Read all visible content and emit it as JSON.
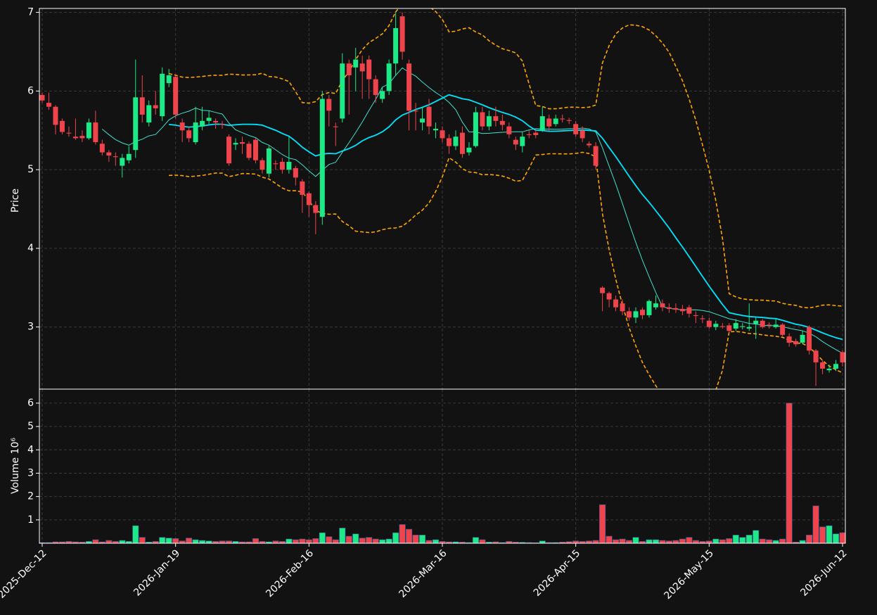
{
  "chart_data": {
    "type": "candlestick",
    "y_label": "Price",
    "volume_label": "Volume  10⁶",
    "categories": [
      "2025-Dec-12",
      null,
      null,
      null,
      null,
      null,
      null,
      null,
      null,
      null,
      null,
      null,
      null,
      null,
      null,
      null,
      null,
      null,
      null,
      null,
      "2026-Jan-19",
      null,
      null,
      null,
      null,
      null,
      null,
      null,
      null,
      null,
      null,
      null,
      null,
      null,
      null,
      null,
      null,
      null,
      null,
      null,
      "2026-Feb-16",
      null,
      null,
      null,
      null,
      null,
      null,
      null,
      null,
      null,
      null,
      null,
      null,
      null,
      null,
      null,
      null,
      null,
      null,
      null,
      "2026-Mar-16",
      null,
      null,
      null,
      null,
      null,
      null,
      null,
      null,
      null,
      null,
      null,
      null,
      null,
      null,
      null,
      null,
      null,
      null,
      null,
      "2026-Apr-15",
      null,
      null,
      null,
      null,
      null,
      null,
      null,
      null,
      null,
      null,
      null,
      null,
      null,
      null,
      null,
      null,
      null,
      null,
      null,
      "2026-May-15",
      null,
      null,
      null,
      null,
      null,
      null,
      null,
      null,
      null,
      null,
      null,
      null,
      null,
      null,
      null,
      null,
      null,
      null,
      null,
      "2026-Jun-12"
    ],
    "open": [
      5.95,
      5.85,
      5.8,
      5.62,
      5.47,
      5.42,
      5.43,
      5.4,
      5.6,
      5.33,
      5.22,
      5.17,
      5.05,
      5.12,
      5.25,
      5.92,
      5.6,
      5.82,
      5.68,
      6.1,
      6.18,
      5.6,
      5.5,
      5.35,
      5.55,
      5.62,
      5.62,
      5.58,
      5.42,
      5.32,
      5.35,
      5.33,
      5.38,
      5.12,
      4.95,
      5.08,
      5.1,
      5.0,
      5.02,
      4.85,
      4.7,
      4.55,
      4.4,
      5.9,
      5.55,
      5.65,
      6.35,
      6.3,
      6.35,
      6.4,
      6.15,
      5.9,
      6.0,
      6.35,
      6.95,
      6.35,
      5.75,
      5.6,
      5.8,
      5.5,
      5.5,
      5.4,
      5.3,
      5.47,
      5.22,
      5.3,
      5.73,
      5.55,
      5.68,
      5.62,
      5.55,
      5.38,
      5.3,
      5.45,
      5.47,
      5.5,
      5.65,
      5.58,
      5.65,
      5.63,
      5.58,
      5.5,
      5.33,
      5.3,
      3.5,
      3.43,
      3.35,
      3.3,
      3.2,
      3.12,
      3.22,
      3.15,
      3.25,
      3.3,
      3.25,
      3.24,
      3.23,
      3.25,
      3.15,
      3.11,
      3.08,
      3.0,
      3.01,
      3.02,
      2.98,
      3.0,
      2.98,
      3.04,
      3.08,
      3.03,
      3.0,
      3.03,
      2.88,
      2.82,
      2.8,
      3.0,
      2.7,
      2.55,
      2.45,
      2.47,
      2.68
    ],
    "high": [
      5.98,
      5.98,
      5.82,
      5.65,
      5.55,
      5.65,
      5.5,
      5.65,
      5.75,
      5.38,
      5.25,
      5.22,
      5.2,
      5.3,
      6.4,
      6.2,
      5.88,
      6.0,
      6.3,
      6.28,
      6.2,
      5.65,
      5.55,
      5.8,
      5.8,
      5.75,
      5.65,
      5.62,
      5.45,
      5.4,
      5.42,
      5.36,
      5.4,
      5.15,
      5.3,
      5.12,
      5.15,
      5.42,
      5.05,
      4.88,
      4.72,
      4.6,
      6.0,
      5.95,
      5.6,
      6.48,
      6.4,
      6.55,
      6.45,
      6.45,
      6.2,
      6.05,
      6.4,
      7.0,
      7.0,
      6.4,
      5.85,
      5.8,
      5.9,
      5.6,
      5.55,
      5.45,
      5.5,
      5.55,
      5.35,
      5.8,
      5.8,
      5.75,
      5.8,
      5.7,
      5.6,
      5.42,
      5.48,
      5.5,
      5.52,
      5.8,
      5.7,
      5.7,
      5.7,
      5.66,
      5.62,
      5.55,
      5.36,
      5.35,
      3.52,
      3.45,
      3.4,
      3.35,
      3.25,
      3.25,
      3.25,
      3.35,
      3.4,
      3.35,
      3.3,
      3.3,
      3.28,
      3.28,
      3.2,
      3.15,
      3.12,
      3.08,
      3.05,
      3.05,
      3.1,
      3.05,
      3.3,
      3.12,
      3.1,
      3.06,
      3.1,
      3.05,
      2.92,
      2.85,
      2.95,
      3.02,
      2.72,
      2.58,
      2.52,
      2.58,
      2.7
    ],
    "low": [
      5.85,
      5.76,
      5.45,
      5.45,
      5.42,
      5.38,
      5.35,
      5.38,
      5.32,
      5.18,
      5.1,
      5.05,
      4.9,
      5.08,
      5.15,
      5.6,
      5.55,
      5.7,
      5.62,
      6.05,
      5.65,
      5.35,
      5.35,
      5.32,
      5.5,
      5.58,
      5.52,
      5.52,
      5.05,
      5.25,
      5.2,
      5.12,
      5.08,
      4.95,
      4.9,
      5.0,
      4.95,
      4.95,
      4.8,
      4.45,
      4.4,
      4.18,
      4.3,
      5.55,
      5.3,
      5.6,
      5.7,
      6.0,
      5.9,
      5.9,
      5.85,
      5.85,
      5.95,
      6.2,
      6.4,
      5.5,
      5.5,
      5.5,
      5.45,
      5.4,
      5.35,
      5.2,
      5.25,
      5.15,
      5.18,
      5.28,
      5.5,
      5.5,
      5.55,
      5.5,
      5.4,
      5.25,
      5.22,
      5.4,
      5.4,
      5.48,
      5.5,
      5.55,
      5.6,
      5.58,
      5.42,
      5.35,
      5.28,
      5.0,
      3.2,
      3.25,
      3.2,
      3.15,
      3.08,
      3.05,
      3.1,
      3.12,
      3.22,
      3.2,
      3.18,
      3.18,
      3.15,
      3.12,
      3.05,
      3.05,
      2.98,
      2.96,
      2.98,
      2.92,
      2.95,
      2.97,
      2.95,
      2.85,
      2.98,
      2.98,
      2.98,
      2.88,
      2.75,
      2.75,
      2.78,
      2.65,
      2.25,
      2.4,
      2.42,
      2.44,
      2.5
    ],
    "close": [
      5.88,
      5.8,
      5.57,
      5.48,
      5.46,
      5.4,
      5.4,
      5.6,
      5.35,
      5.22,
      5.18,
      5.16,
      5.15,
      5.2,
      5.92,
      5.7,
      5.82,
      5.78,
      6.22,
      6.2,
      5.7,
      5.5,
      5.4,
      5.6,
      5.62,
      5.66,
      5.6,
      5.57,
      5.08,
      5.34,
      5.33,
      5.15,
      5.12,
      5.0,
      5.27,
      5.07,
      5.0,
      5.1,
      4.9,
      4.68,
      4.55,
      4.45,
      5.9,
      5.75,
      5.54,
      6.35,
      6.2,
      6.4,
      6.25,
      6.15,
      5.95,
      6.0,
      6.35,
      6.8,
      6.5,
      5.75,
      5.74,
      5.65,
      5.55,
      5.52,
      5.4,
      5.3,
      5.42,
      5.2,
      5.28,
      5.73,
      5.55,
      5.68,
      5.62,
      5.57,
      5.45,
      5.32,
      5.42,
      5.44,
      5.44,
      5.68,
      5.55,
      5.65,
      5.64,
      5.62,
      5.45,
      5.4,
      5.31,
      5.05,
      3.43,
      3.35,
      3.25,
      3.2,
      3.12,
      3.2,
      3.15,
      3.33,
      3.3,
      3.25,
      3.23,
      3.22,
      3.2,
      3.17,
      3.14,
      3.1,
      3.0,
      3.04,
      3.0,
      2.95,
      3.05,
      3.01,
      3.0,
      3.08,
      3.0,
      3.02,
      3.03,
      2.9,
      2.8,
      2.78,
      2.9,
      2.7,
      2.55,
      2.47,
      2.47,
      2.53,
      2.55
    ],
    "volume": [
      0.03,
      0.03,
      0.06,
      0.06,
      0.08,
      0.06,
      0.05,
      0.08,
      0.15,
      0.06,
      0.12,
      0.08,
      0.12,
      0.08,
      0.75,
      0.25,
      0.05,
      0.08,
      0.25,
      0.22,
      0.2,
      0.1,
      0.22,
      0.15,
      0.12,
      0.1,
      0.08,
      0.1,
      0.1,
      0.08,
      0.06,
      0.06,
      0.2,
      0.08,
      0.06,
      0.1,
      0.08,
      0.18,
      0.15,
      0.18,
      0.15,
      0.2,
      0.45,
      0.28,
      0.15,
      0.65,
      0.3,
      0.4,
      0.22,
      0.25,
      0.18,
      0.15,
      0.18,
      0.45,
      0.8,
      0.6,
      0.35,
      0.35,
      0.12,
      0.15,
      0.08,
      0.06,
      0.06,
      0.05,
      0.03,
      0.25,
      0.15,
      0.05,
      0.06,
      0.03,
      0.08,
      0.05,
      0.04,
      0.03,
      0.02,
      0.1,
      0.03,
      0.03,
      0.05,
      0.07,
      0.1,
      0.08,
      0.1,
      0.12,
      1.65,
      0.3,
      0.15,
      0.18,
      0.12,
      0.25,
      0.08,
      0.15,
      0.15,
      0.12,
      0.1,
      0.12,
      0.18,
      0.25,
      0.12,
      0.08,
      0.1,
      0.18,
      0.15,
      0.2,
      0.35,
      0.25,
      0.35,
      0.55,
      0.18,
      0.15,
      0.12,
      0.18,
      6.0,
      0.05,
      0.12,
      0.35,
      1.6,
      0.7,
      0.75,
      0.4,
      0.45
    ],
    "up_color": "#1de986",
    "down_color": "#f0444c",
    "ylim": [
      2.21,
      7.05
    ],
    "yticks": [
      3,
      4,
      5,
      6,
      7
    ],
    "volume_ylim": [
      0,
      6.6
    ],
    "volume_ticks": [
      1,
      2,
      3,
      4,
      5,
      6
    ],
    "grid": true
  }
}
